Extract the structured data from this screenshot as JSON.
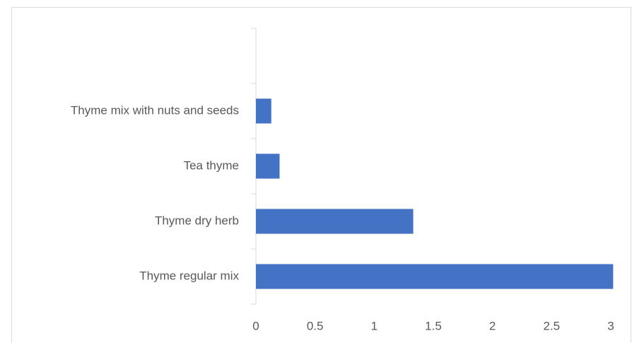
{
  "chart_data": {
    "type": "bar",
    "orientation": "horizontal",
    "categories": [
      "Thyme regular mix",
      "Thyme dry herb",
      "Tea thyme",
      "Thyme mix with nuts and seeds",
      null
    ],
    "values": [
      3.02,
      1.33,
      0.2,
      0.13,
      null
    ],
    "color": "#4472c4",
    "xlim": [
      0,
      3
    ],
    "xticks": [
      0,
      0.5,
      1,
      1.5,
      2,
      2.5,
      3
    ],
    "grid": false
  }
}
